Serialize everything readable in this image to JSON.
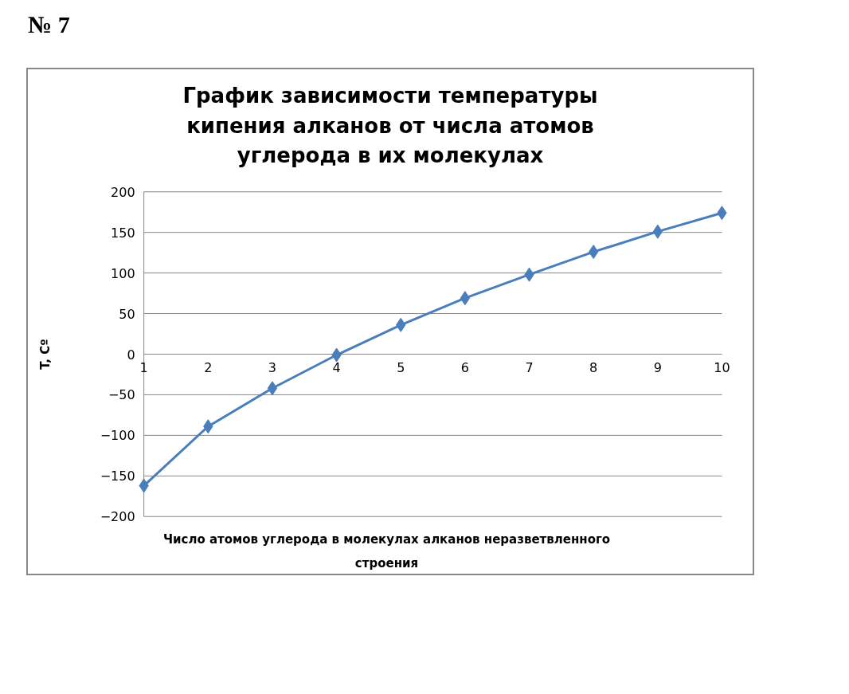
{
  "chart_data": {
    "type": "line",
    "title": "График зависимости температуры кипения алканов от числа атомов углерода в их молекулах",
    "xlabel": "Число атомов углерода в молекулах алканов неразветвленного строения",
    "ylabel": "T, Cº",
    "annotations": [
      "№ 7"
    ],
    "x": [
      1,
      2,
      3,
      4,
      5,
      6,
      7,
      8,
      9,
      10
    ],
    "series": [
      {
        "color": "#4a7ebb",
        "values": [
          -162,
          -89,
          -42,
          -1,
          36,
          69,
          98,
          126,
          151,
          174
        ]
      }
    ],
    "xlim": [
      1,
      10
    ],
    "xticks": [
      1,
      2,
      3,
      4,
      5,
      6,
      7,
      8,
      9,
      10
    ],
    "ylim": [
      -200,
      200
    ],
    "yticks": [
      -200,
      -150,
      -100,
      -50,
      0,
      50,
      100,
      150,
      200
    ],
    "grid": "y",
    "marker": "diamond",
    "line_style": "solid"
  }
}
